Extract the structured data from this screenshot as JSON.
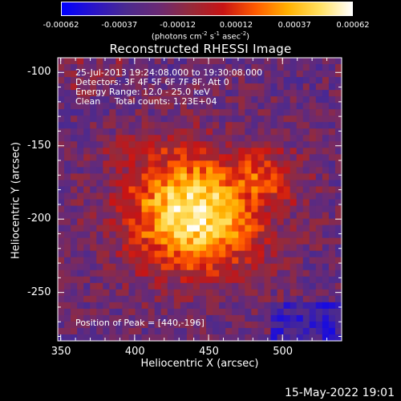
{
  "colorbar": {
    "ticks": [
      "-0.00062",
      "-0.00037",
      "-0.00012",
      "0.00012",
      "0.00037",
      "0.00062"
    ],
    "units": "(photons cm-2 s-1 asec-2)",
    "stops": [
      "#0000ff",
      "#2a14c8",
      "#4b2a8f",
      "#6a2a74",
      "#962a3a",
      "#c81414",
      "#ff5a00",
      "#ffb000",
      "#ffe060",
      "#ffffff"
    ]
  },
  "header": {
    "title": "Reconstructed RHESSI Image",
    "time_range": "25-Jul-2013 19:24:08.000 to 19:30:08.000",
    "detectors": "Detectors: 3F 4F 5F 6F 7F 8F, Att 0",
    "energy": "Energy Range: 12.0 - 25.0 keV",
    "clean": "Clean     Total counts: 1.23E+04",
    "peak": "Position of Peak = [440,-196]"
  },
  "footer": {
    "timestamp": "15-May-2022 19:01"
  },
  "chart_data": {
    "type": "heatmap",
    "title": "Reconstructed RHESSI Image",
    "xlabel": "Heliocentric X (arcsec)",
    "ylabel": "Heliocentric Y (arcsec)",
    "xlim": [
      348,
      540
    ],
    "ylim": [
      -283,
      -90
    ],
    "x_ticks": [
      350,
      400,
      450,
      500
    ],
    "y_ticks": [
      -100,
      -150,
      -200,
      -250
    ],
    "peak_position": [
      440,
      -196
    ],
    "color_range": [
      -0.00062,
      0.00062
    ]
  }
}
